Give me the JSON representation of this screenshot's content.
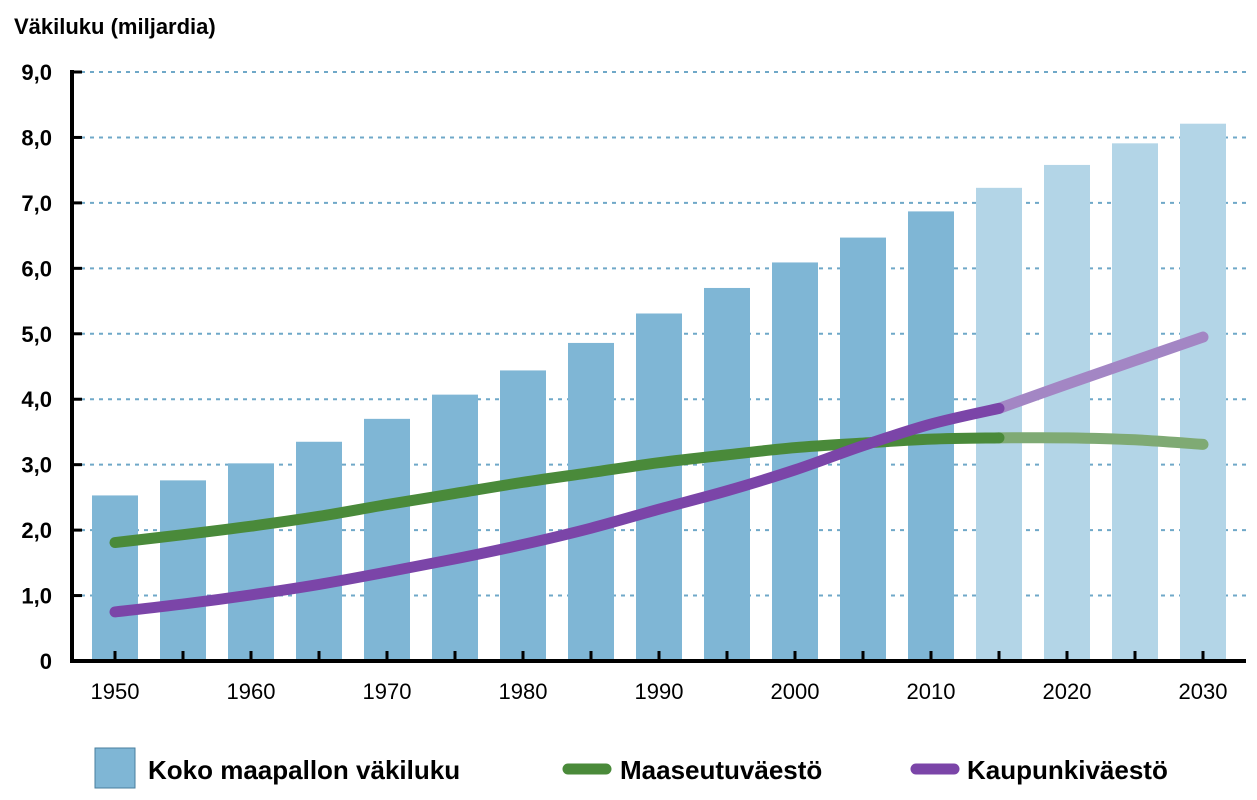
{
  "chart_data": {
    "type": "bar",
    "ylabel": "Väkiluku (miljardia)",
    "ylim": [
      0,
      9
    ],
    "yticks": [
      0,
      1,
      2,
      3,
      4,
      5,
      6,
      7,
      8,
      9
    ],
    "ytick_labels": [
      "0",
      "1,0",
      "2,0",
      "3,0",
      "4,0",
      "5,0",
      "6,0",
      "7,0",
      "8,0",
      "9,0"
    ],
    "grid": "horizontal dotted",
    "x_tick_labels": [
      "1950",
      "1960",
      "1970",
      "1980",
      "1990",
      "2000",
      "2010",
      "2020",
      "2030"
    ],
    "x": [
      1950,
      1955,
      1960,
      1965,
      1970,
      1975,
      1980,
      1985,
      1990,
      1995,
      2000,
      2005,
      2010,
      2015,
      2020,
      2025,
      2030
    ],
    "series": [
      {
        "name": "Koko maapallon väkiluku",
        "kind": "bar",
        "color": "#7fb6d5",
        "projection_color": "#b3d5e7",
        "projection_from": 2015,
        "values": [
          2.53,
          2.76,
          3.02,
          3.35,
          3.7,
          4.07,
          4.44,
          4.86,
          5.31,
          5.7,
          6.09,
          6.47,
          6.87,
          7.23,
          7.58,
          7.91,
          8.21
        ]
      },
      {
        "name": "Maaseutuväestö",
        "kind": "line",
        "color": "#4a8a3a",
        "projection_color": "#7faa74",
        "projection_from": 2015,
        "values": [
          1.81,
          1.93,
          2.06,
          2.21,
          2.39,
          2.56,
          2.73,
          2.88,
          3.03,
          3.15,
          3.26,
          3.33,
          3.39,
          3.41,
          3.41,
          3.38,
          3.31
        ]
      },
      {
        "name": "Kaupunkiväestö",
        "kind": "line",
        "color": "#7b45a8",
        "projection_color": "#a386c4",
        "projection_from": 2015,
        "values": [
          0.75,
          0.87,
          1.01,
          1.17,
          1.36,
          1.56,
          1.78,
          2.03,
          2.32,
          2.6,
          2.92,
          3.29,
          3.62,
          3.86,
          4.23,
          4.59,
          4.95
        ]
      }
    ],
    "legend": {
      "position": "bottom",
      "items": [
        {
          "label": "Koko maapallon väkiluku",
          "symbol": "square",
          "color": "#7fb6d5"
        },
        {
          "label": "Maaseutuväestö",
          "symbol": "line",
          "color": "#4a8a3a"
        },
        {
          "label": "Kaupunkiväestö",
          "symbol": "line",
          "color": "#7b45a8"
        }
      ]
    }
  }
}
